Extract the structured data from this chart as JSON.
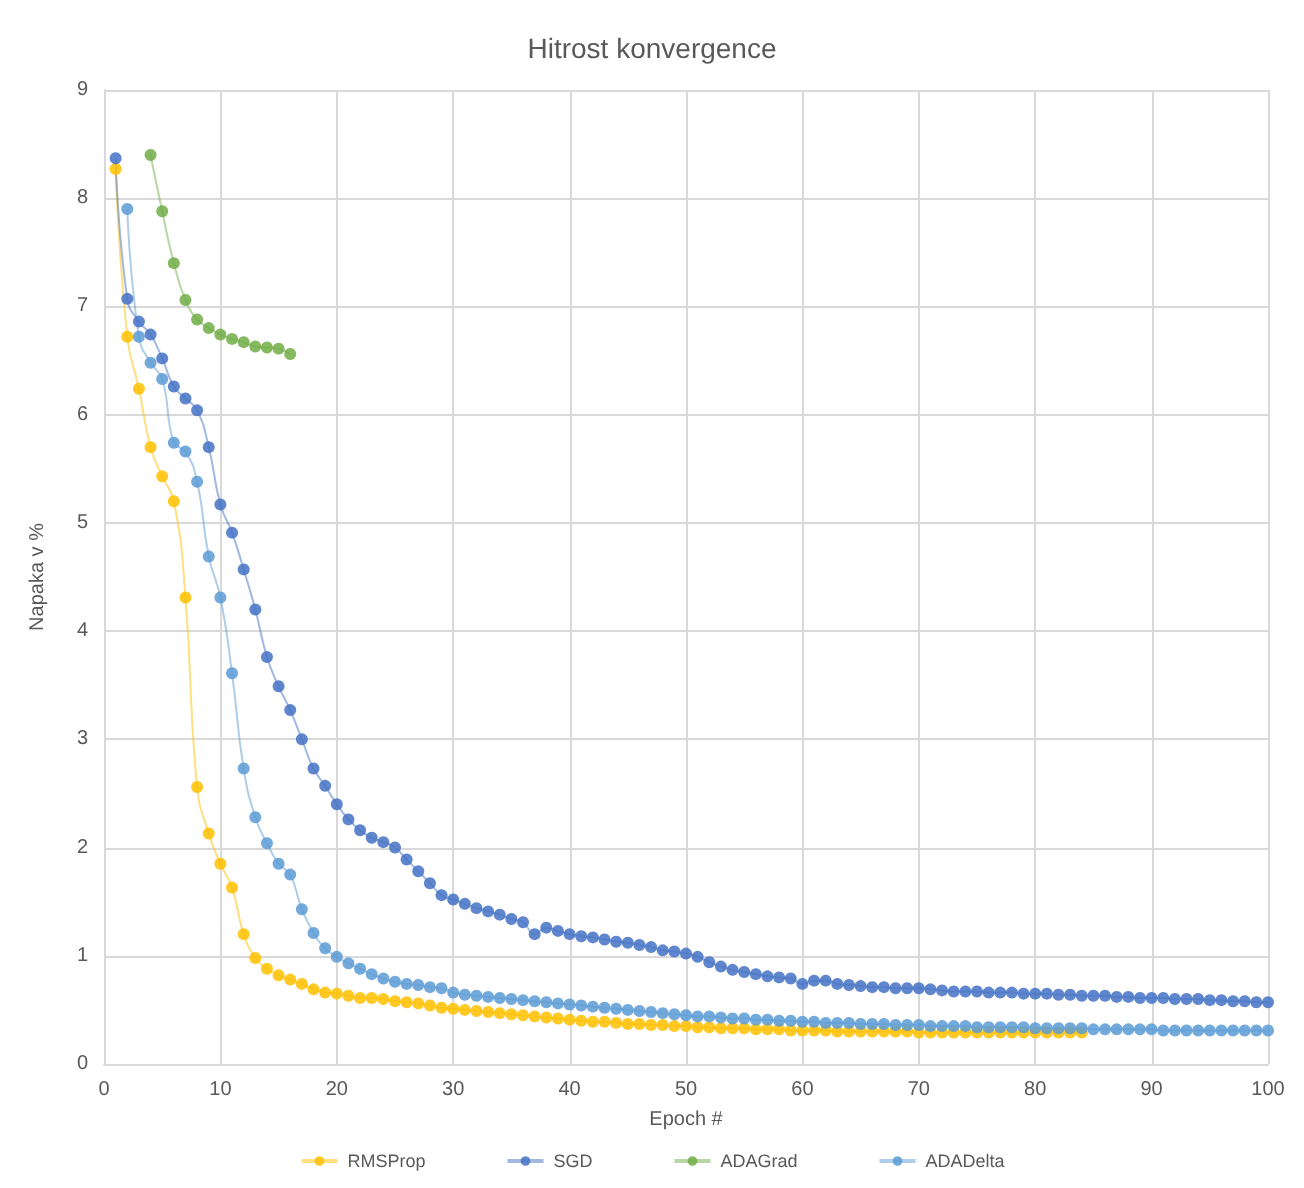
{
  "chart_data": {
    "type": "line",
    "title": "Hitrost konvergence",
    "xlabel": "Epoch #",
    "ylabel": "Napaka v %",
    "xlim": [
      0,
      100
    ],
    "xticks": [
      0,
      10,
      20,
      30,
      40,
      50,
      60,
      70,
      80,
      90,
      100
    ],
    "ylim": [
      0,
      9
    ],
    "yticks": [
      0,
      1,
      2,
      3,
      4,
      5,
      6,
      7,
      8,
      9
    ],
    "grid": true,
    "legend": "bottom",
    "marker": "circle",
    "line_style": "solid",
    "series": [
      {
        "name": "RMSProp",
        "color": "#ffc000",
        "x": [
          1,
          2,
          3,
          4,
          5,
          6,
          7,
          8,
          9,
          10,
          11,
          12,
          13,
          14,
          15,
          16,
          17,
          18,
          19,
          20,
          21,
          22,
          23,
          24,
          25,
          26,
          27,
          28,
          29,
          30,
          31,
          32,
          33,
          34,
          35,
          36,
          37,
          38,
          39,
          40,
          41,
          42,
          43,
          44,
          45,
          46,
          47,
          48,
          49,
          50,
          51,
          52,
          53,
          54,
          55,
          56,
          57,
          58,
          59,
          60,
          61,
          62,
          63,
          64,
          65,
          66,
          67,
          68,
          69,
          70,
          71,
          72,
          73,
          74,
          75,
          76,
          77,
          78,
          79,
          80,
          81,
          82,
          83,
          84
        ],
        "values": [
          8.27,
          6.72,
          6.24,
          5.7,
          5.43,
          5.2,
          4.31,
          2.56,
          2.13,
          1.85,
          1.63,
          1.2,
          0.98,
          0.88,
          0.82,
          0.78,
          0.74,
          0.69,
          0.66,
          0.65,
          0.63,
          0.61,
          0.61,
          0.6,
          0.58,
          0.57,
          0.56,
          0.54,
          0.52,
          0.51,
          0.5,
          0.49,
          0.48,
          0.47,
          0.46,
          0.45,
          0.44,
          0.43,
          0.42,
          0.41,
          0.4,
          0.39,
          0.39,
          0.38,
          0.37,
          0.37,
          0.36,
          0.36,
          0.35,
          0.35,
          0.34,
          0.34,
          0.33,
          0.33,
          0.33,
          0.32,
          0.32,
          0.32,
          0.31,
          0.31,
          0.31,
          0.31,
          0.3,
          0.3,
          0.3,
          0.3,
          0.3,
          0.3,
          0.3,
          0.29,
          0.29,
          0.29,
          0.29,
          0.29,
          0.29,
          0.29,
          0.29,
          0.29,
          0.29,
          0.29,
          0.29,
          0.29,
          0.29,
          0.29
        ]
      },
      {
        "name": "SGD",
        "color": "#4472c4",
        "x": [
          1,
          2,
          3,
          4,
          5,
          6,
          7,
          8,
          9,
          10,
          11,
          12,
          13,
          14,
          15,
          16,
          17,
          18,
          19,
          20,
          21,
          22,
          23,
          24,
          25,
          26,
          27,
          28,
          29,
          30,
          31,
          32,
          33,
          34,
          35,
          36,
          37,
          38,
          39,
          40,
          41,
          42,
          43,
          44,
          45,
          46,
          47,
          48,
          49,
          50,
          51,
          52,
          53,
          54,
          55,
          56,
          57,
          58,
          59,
          60,
          61,
          62,
          63,
          64,
          65,
          66,
          67,
          68,
          69,
          70,
          71,
          72,
          73,
          74,
          75,
          76,
          77,
          78,
          79,
          80,
          81,
          82,
          83,
          84,
          85,
          86,
          87,
          88,
          89,
          90,
          91,
          92,
          93,
          94,
          95,
          96,
          97,
          98,
          99,
          100
        ],
        "values": [
          8.37,
          7.07,
          6.86,
          6.74,
          6.52,
          6.26,
          6.15,
          6.04,
          5.7,
          5.17,
          4.91,
          4.57,
          4.2,
          3.76,
          3.49,
          3.27,
          3.0,
          2.73,
          2.57,
          2.4,
          2.26,
          2.16,
          2.09,
          2.05,
          2.0,
          1.89,
          1.78,
          1.67,
          1.56,
          1.52,
          1.48,
          1.44,
          1.41,
          1.38,
          1.34,
          1.31,
          1.2,
          1.26,
          1.23,
          1.2,
          1.18,
          1.17,
          1.15,
          1.13,
          1.12,
          1.1,
          1.08,
          1.05,
          1.04,
          1.02,
          0.99,
          0.94,
          0.9,
          0.87,
          0.85,
          0.83,
          0.81,
          0.8,
          0.79,
          0.74,
          0.77,
          0.77,
          0.74,
          0.73,
          0.72,
          0.71,
          0.71,
          0.7,
          0.7,
          0.7,
          0.69,
          0.68,
          0.67,
          0.67,
          0.67,
          0.66,
          0.66,
          0.66,
          0.65,
          0.65,
          0.65,
          0.64,
          0.64,
          0.63,
          0.63,
          0.63,
          0.62,
          0.62,
          0.61,
          0.61,
          0.61,
          0.6,
          0.6,
          0.6,
          0.59,
          0.59,
          0.58,
          0.58,
          0.57,
          0.57
        ]
      },
      {
        "name": "ADAGrad",
        "color": "#70ad47",
        "x": [
          4,
          5,
          6,
          7,
          8,
          9,
          10,
          11,
          12,
          13,
          14,
          15,
          16
        ],
        "values": [
          8.4,
          7.88,
          7.4,
          7.06,
          6.88,
          6.8,
          6.74,
          6.7,
          6.67,
          6.63,
          6.62,
          6.61,
          6.56
        ]
      },
      {
        "name": "ADADelta",
        "color": "#5b9bd5",
        "x": [
          2,
          3,
          4,
          5,
          6,
          7,
          8,
          9,
          10,
          11,
          12,
          13,
          14,
          15,
          16,
          17,
          18,
          19,
          20,
          21,
          22,
          23,
          24,
          25,
          26,
          27,
          28,
          29,
          30,
          31,
          32,
          33,
          34,
          35,
          36,
          37,
          38,
          39,
          40,
          41,
          42,
          43,
          44,
          45,
          46,
          47,
          48,
          49,
          50,
          51,
          52,
          53,
          54,
          55,
          56,
          57,
          58,
          59,
          60,
          61,
          62,
          63,
          64,
          65,
          66,
          67,
          68,
          69,
          70,
          71,
          72,
          73,
          74,
          75,
          76,
          77,
          78,
          79,
          80,
          81,
          82,
          83,
          84,
          85,
          86,
          87,
          88,
          89,
          90,
          91,
          92,
          93,
          94,
          95,
          96,
          97,
          98,
          99,
          100
        ],
        "values": [
          7.9,
          6.72,
          6.48,
          6.33,
          5.74,
          5.66,
          5.38,
          4.69,
          4.31,
          3.61,
          2.73,
          2.28,
          2.04,
          1.85,
          1.75,
          1.43,
          1.21,
          1.07,
          0.99,
          0.93,
          0.88,
          0.83,
          0.79,
          0.76,
          0.74,
          0.73,
          0.71,
          0.7,
          0.66,
          0.64,
          0.63,
          0.62,
          0.61,
          0.6,
          0.59,
          0.58,
          0.57,
          0.56,
          0.55,
          0.54,
          0.53,
          0.52,
          0.51,
          0.5,
          0.49,
          0.48,
          0.47,
          0.46,
          0.45,
          0.44,
          0.44,
          0.43,
          0.42,
          0.42,
          0.41,
          0.41,
          0.4,
          0.4,
          0.39,
          0.39,
          0.38,
          0.38,
          0.38,
          0.37,
          0.37,
          0.37,
          0.36,
          0.36,
          0.36,
          0.35,
          0.35,
          0.35,
          0.35,
          0.34,
          0.34,
          0.34,
          0.34,
          0.34,
          0.33,
          0.33,
          0.33,
          0.33,
          0.33,
          0.32,
          0.32,
          0.32,
          0.32,
          0.32,
          0.32,
          0.31,
          0.31,
          0.31,
          0.31,
          0.31,
          0.31,
          0.31,
          0.31,
          0.31,
          0.31
        ]
      }
    ]
  }
}
